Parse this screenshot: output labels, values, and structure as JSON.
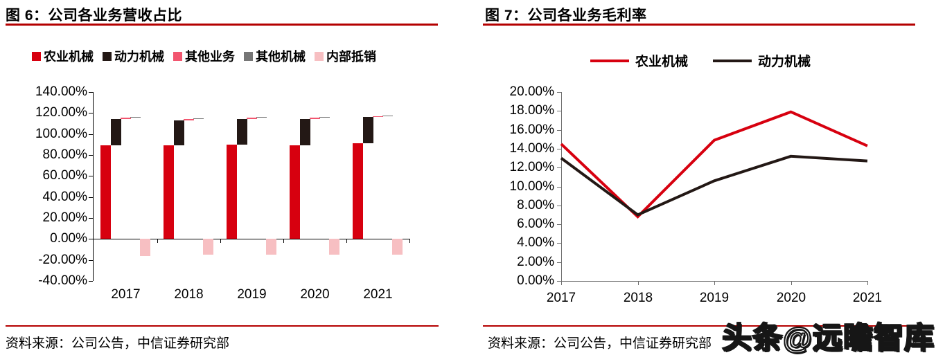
{
  "panels": [
    {
      "id": "figure6",
      "title": "图 6：公司各业务营收占比",
      "source": "资料来源：公司公告，中信证券研究部"
    },
    {
      "id": "figure7",
      "title": "图 7：公司各业务毛利率",
      "source": "资料来源：公司公告，中信证券研究部"
    }
  ],
  "watermark": "头条@远瞻智库",
  "accent_rule_color": "#B40000",
  "chart_data": [
    {
      "type": "bar",
      "subtype": "stacked-with-horizontal-offset",
      "title": "图 6：公司各业务营收占比",
      "categories": [
        "2017",
        "2018",
        "2019",
        "2020",
        "2021"
      ],
      "series": [
        {
          "name": "农业机械",
          "color": "#D7000F",
          "values": [
            89,
            89,
            90,
            89,
            91
          ]
        },
        {
          "name": "动力机械",
          "color": "#231815",
          "values": [
            25,
            24,
            24,
            25,
            25
          ]
        },
        {
          "name": "其他业务",
          "color": "#F2566F",
          "values": [
            1.5,
            1.5,
            1.5,
            1.5,
            1
          ]
        },
        {
          "name": "其他机械",
          "color": "#767676",
          "values": [
            0.5,
            0.5,
            0.5,
            0.5,
            0.5
          ]
        },
        {
          "name": "内部抵销",
          "color": "#F7BFC2",
          "values": [
            -16,
            -15,
            -15,
            -15,
            -15
          ]
        }
      ],
      "ylim": [
        -40,
        140
      ],
      "ytick_step": 20,
      "ytick_labels": [
        "140.00%",
        "120.00%",
        "100.00%",
        "80.00%",
        "60.00%",
        "40.00%",
        "20.00%",
        "0.00%",
        "-20.00%",
        "-40.00%"
      ],
      "grid": false,
      "legend_position": "top-left"
    },
    {
      "type": "line",
      "title": "图 7：公司各业务毛利率",
      "categories": [
        "2017",
        "2018",
        "2019",
        "2020",
        "2021"
      ],
      "series": [
        {
          "name": "农业机械",
          "color": "#D7000F",
          "values": [
            14.5,
            6.8,
            14.9,
            17.9,
            14.3
          ]
        },
        {
          "name": "动力机械",
          "color": "#231815",
          "values": [
            13.0,
            7.0,
            10.6,
            13.2,
            12.7
          ]
        }
      ],
      "ylim": [
        0,
        20
      ],
      "ytick_step": 2,
      "ytick_labels": [
        "20.00%",
        "18.00%",
        "16.00%",
        "14.00%",
        "12.00%",
        "10.00%",
        "8.00%",
        "6.00%",
        "4.00%",
        "2.00%",
        "0.00%"
      ],
      "grid": false,
      "legend_position": "top-center"
    }
  ]
}
